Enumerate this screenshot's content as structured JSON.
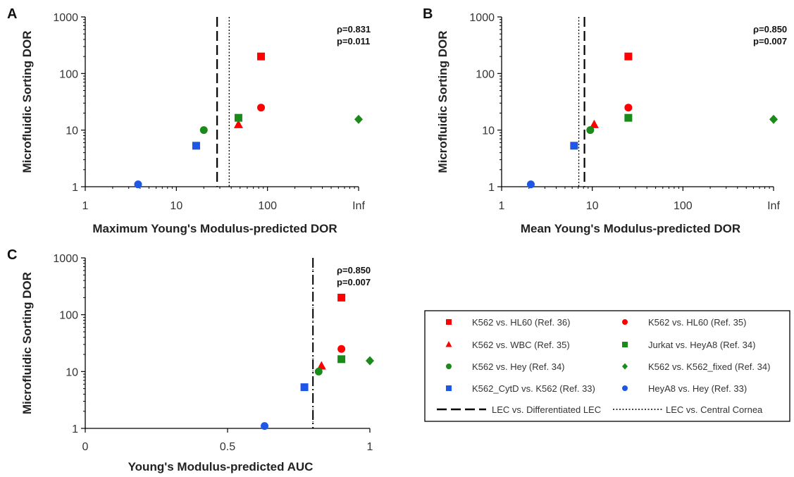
{
  "colors": {
    "red": "#ff0000",
    "green": "#1a8a1a",
    "blue": "#1e56e6",
    "axis": "#000000"
  },
  "chart_data": [
    {
      "type": "scatter",
      "panel": "A",
      "xlabel": "Maximum Young's Modulus-predicted DOR",
      "ylabel": "Microfluidic Sorting DOR",
      "xscale": "log",
      "yscale": "log",
      "xticks": [
        "1",
        "10",
        "100",
        "Inf"
      ],
      "yticks": [
        "1",
        "10",
        "100",
        "1000"
      ],
      "ylim": [
        1,
        1000
      ],
      "stats": [
        "ρ=0.831",
        "p=0.011"
      ],
      "lines": [
        {
          "series": "LEC vs. Differentiated LEC",
          "x": 28
        },
        {
          "series": "LEC vs. Central Cornea",
          "x": 38
        }
      ],
      "points": [
        {
          "series": "K562 vs. HL60 (Ref. 36)",
          "x": 85,
          "y": 200
        },
        {
          "series": "K562 vs. HL60 (Ref. 35)",
          "x": 85,
          "y": 25
        },
        {
          "series": "K562 vs. WBC (Ref. 35)",
          "x": 48,
          "y": 12.5
        },
        {
          "series": "Jurkat vs. HeyA8 (Ref. 34)",
          "x": 48,
          "y": 16.5
        },
        {
          "series": "K562 vs. Hey (Ref. 34)",
          "x": 20,
          "y": 10
        },
        {
          "series": "K562 vs. K562_fixed (Ref. 34)",
          "x": "Inf",
          "y": 15.5
        },
        {
          "series": "K562_CytD vs. K562 (Ref. 33)",
          "x": 16.5,
          "y": 5.3
        },
        {
          "series": "HeyA8 vs. Hey (Ref. 33)",
          "x": 3.8,
          "y": 1.1
        }
      ]
    },
    {
      "type": "scatter",
      "panel": "B",
      "xlabel": "Mean Young's Modulus-predicted DOR",
      "ylabel": "Microfluidic Sorting DOR",
      "xscale": "log",
      "yscale": "log",
      "xticks": [
        "1",
        "10",
        "100",
        "Inf"
      ],
      "yticks": [
        "1",
        "10",
        "100",
        "1000"
      ],
      "ylim": [
        1,
        1000
      ],
      "stats": [
        "ρ=0.850",
        "p=0.007"
      ],
      "lines": [
        {
          "series": "LEC vs. Differentiated LEC",
          "x": 8.2
        },
        {
          "series": "LEC vs. Central Cornea",
          "x": 7.1
        }
      ],
      "points": [
        {
          "series": "K562 vs. HL60 (Ref. 36)",
          "x": 25,
          "y": 200
        },
        {
          "series": "K562 vs. HL60 (Ref. 35)",
          "x": 25,
          "y": 25
        },
        {
          "series": "K562 vs. WBC (Ref. 35)",
          "x": 10.5,
          "y": 12.5
        },
        {
          "series": "Jurkat vs. HeyA8 (Ref. 34)",
          "x": 25,
          "y": 16.5
        },
        {
          "series": "K562 vs. Hey (Ref. 34)",
          "x": 9.5,
          "y": 10
        },
        {
          "series": "K562 vs. K562_fixed (Ref. 34)",
          "x": "Inf",
          "y": 15.5
        },
        {
          "series": "K562_CytD vs. K562 (Ref. 33)",
          "x": 6.3,
          "y": 5.3
        },
        {
          "series": "HeyA8 vs. Hey (Ref. 33)",
          "x": 2.1,
          "y": 1.1
        }
      ]
    },
    {
      "type": "scatter",
      "panel": "C",
      "xlabel": "Young's Modulus-predicted AUC",
      "ylabel": "Microfluidic Sorting DOR",
      "xscale": "linear",
      "yscale": "log",
      "xticks": [
        "0",
        "0.5",
        "1"
      ],
      "xlim": [
        0,
        1
      ],
      "yticks": [
        "1",
        "10",
        "100",
        "1000"
      ],
      "ylim": [
        1,
        1000
      ],
      "stats": [
        "ρ=0.850",
        "p=0.007"
      ],
      "lines": [
        {
          "series": "LEC vs. Differentiated LEC",
          "x": 0.8
        },
        {
          "series": "LEC vs. Central Cornea",
          "x": 0.8
        }
      ],
      "points": [
        {
          "series": "K562 vs. HL60 (Ref. 36)",
          "x": 0.9,
          "y": 200
        },
        {
          "series": "K562 vs. HL60 (Ref. 35)",
          "x": 0.9,
          "y": 25
        },
        {
          "series": "K562 vs. WBC (Ref. 35)",
          "x": 0.83,
          "y": 12.5
        },
        {
          "series": "Jurkat vs. HeyA8 (Ref. 34)",
          "x": 0.9,
          "y": 16.5
        },
        {
          "series": "K562 vs. Hey (Ref. 34)",
          "x": 0.82,
          "y": 10
        },
        {
          "series": "K562 vs. K562_fixed (Ref. 34)",
          "x": 1.0,
          "y": 15.5
        },
        {
          "series": "K562_CytD vs. K562 (Ref. 33)",
          "x": 0.77,
          "y": 5.3
        },
        {
          "series": "HeyA8 vs. Hey (Ref. 33)",
          "x": 0.63,
          "y": 1.1
        }
      ]
    }
  ],
  "legend": {
    "items": [
      {
        "label": "K562 vs. HL60 (Ref. 36)",
        "marker": "square",
        "color": "#ff0000"
      },
      {
        "label": "K562 vs. HL60 (Ref. 35)",
        "marker": "circle",
        "color": "#ff0000"
      },
      {
        "label": "K562 vs. WBC (Ref. 35)",
        "marker": "triangle",
        "color": "#ff0000"
      },
      {
        "label": "Jurkat vs. HeyA8 (Ref. 34)",
        "marker": "square",
        "color": "#1a8a1a"
      },
      {
        "label": "K562 vs. Hey (Ref. 34)",
        "marker": "circle",
        "color": "#1a8a1a"
      },
      {
        "label": "K562 vs. K562_fixed (Ref. 34)",
        "marker": "diamond",
        "color": "#1a8a1a"
      },
      {
        "label": "K562_CytD vs. K562 (Ref. 33)",
        "marker": "square",
        "color": "#1e56e6"
      },
      {
        "label": "HeyA8 vs. Hey (Ref. 33)",
        "marker": "circle",
        "color": "#1e56e6"
      },
      {
        "label": "LEC vs. Differentiated LEC",
        "marker": "dash-line",
        "color": "#000000"
      },
      {
        "label": "LEC vs. Central Cornea",
        "marker": "dot-line",
        "color": "#000000"
      }
    ]
  }
}
